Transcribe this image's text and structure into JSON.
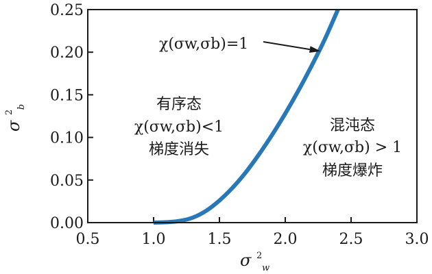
{
  "chart_data": {
    "type": "line",
    "xlim": [
      0.5,
      3.0
    ],
    "ylim": [
      0.0,
      0.25
    ],
    "x_ticks": [
      "0.5",
      "1.0",
      "1.5",
      "2.0",
      "2.5",
      "3.0"
    ],
    "y_ticks": [
      "0.00",
      "0.05",
      "0.10",
      "0.15",
      "0.20",
      "0.25"
    ],
    "xlabel": {
      "base": "σ",
      "sup": "2",
      "sub": "w"
    },
    "ylabel": {
      "base": "σ",
      "sup": "2",
      "sub": "b"
    },
    "grid": false,
    "series": [
      {
        "color": "#2878b8",
        "x": [
          1.0,
          1.1,
          1.2,
          1.3,
          1.4,
          1.5,
          1.6,
          1.7,
          1.8,
          1.9,
          2.0,
          2.1,
          2.2,
          2.3,
          2.4
        ],
        "y": [
          0.0,
          0.0005,
          0.002,
          0.006,
          0.014,
          0.026,
          0.041,
          0.059,
          0.08,
          0.103,
          0.128,
          0.155,
          0.184,
          0.215,
          0.25
        ]
      }
    ],
    "annotations": [
      {
        "text": "χ(σ_w,σ_b)=1",
        "arrow_to": [
          2.3,
          0.202
        ]
      }
    ],
    "regions": [
      {
        "lines": [
          "有序态",
          "χ(σ_w,σ_b)<1",
          "梯度消失"
        ]
      },
      {
        "lines": [
          "混沌态",
          "χ(σ_w,σ_b) > 1",
          "梯度爆炸"
        ]
      }
    ]
  },
  "text": {
    "annot_line": "χ(σw,σb)=1",
    "ordered_title": "有序态",
    "ordered_cond": "χ(σw,σb)<1",
    "ordered_grad": "梯度消失",
    "chaos_title": "混沌态",
    "chaos_cond": "χ(σw,σb) > 1",
    "chaos_grad": "梯度爆炸"
  },
  "colors": {
    "curve": "#2878b8",
    "axis": "#1a1a1a"
  }
}
